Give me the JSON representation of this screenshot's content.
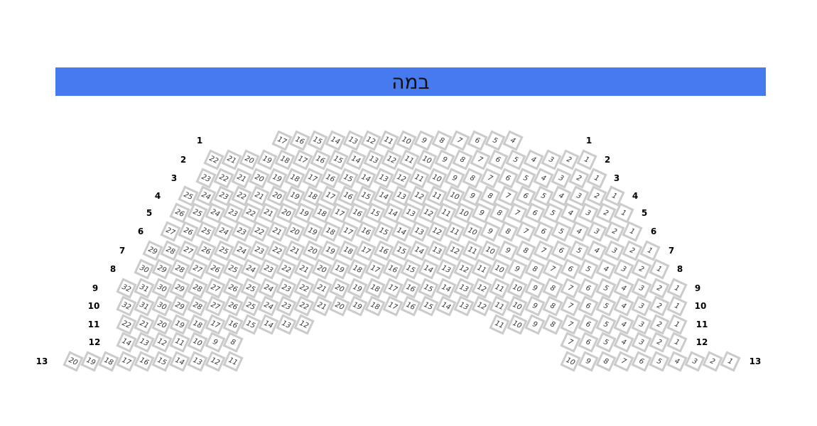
{
  "stage": {
    "label": "במה",
    "color": "#4779ef"
  },
  "seat_border_color": "#cbcbcb",
  "rows": [
    {
      "label": "1",
      "sections": [
        [
          17,
          16,
          15,
          14,
          13,
          12,
          11,
          10,
          9,
          8,
          7,
          6,
          5,
          4
        ]
      ]
    },
    {
      "label": "2",
      "sections": [
        [
          22,
          21,
          20,
          19,
          18,
          17,
          16,
          15,
          14,
          13,
          12,
          11,
          10,
          9,
          8,
          7,
          6,
          5,
          4,
          3,
          2,
          1
        ]
      ]
    },
    {
      "label": "3",
      "sections": [
        [
          23,
          22,
          21,
          20,
          19,
          18,
          17,
          16,
          15,
          14,
          13,
          12,
          11,
          10,
          9,
          8,
          7,
          6,
          5,
          4,
          3,
          2,
          1
        ]
      ]
    },
    {
      "label": "4",
      "sections": [
        [
          25,
          24,
          23,
          22,
          21,
          20,
          19,
          18,
          17,
          16,
          15,
          14,
          13,
          12,
          11,
          10,
          9,
          8,
          7,
          6,
          5,
          4,
          3,
          2,
          1
        ]
      ]
    },
    {
      "label": "5",
      "sections": [
        [
          26,
          25,
          24,
          23,
          22,
          21,
          20,
          19,
          18,
          17,
          16,
          15,
          14,
          13,
          12,
          11,
          10,
          9,
          8,
          7,
          6,
          5,
          4,
          3,
          2,
          1
        ]
      ]
    },
    {
      "label": "6",
      "sections": [
        [
          27,
          26,
          25,
          24,
          23,
          22,
          21,
          20,
          19,
          18,
          17,
          16,
          15,
          14,
          13,
          12,
          11,
          10,
          9,
          8,
          7,
          6,
          5,
          4,
          3,
          2,
          1
        ]
      ]
    },
    {
      "label": "7",
      "sections": [
        [
          29,
          28,
          27,
          26,
          25,
          24,
          23,
          22,
          21,
          20,
          19,
          18,
          17,
          16,
          15,
          14,
          13,
          12,
          11,
          10,
          9,
          8,
          7,
          6,
          5,
          4,
          3,
          2,
          1
        ]
      ]
    },
    {
      "label": "8",
      "sections": [
        [
          30,
          29,
          28,
          27,
          26,
          25,
          24,
          23,
          22,
          21,
          20,
          19,
          18,
          17,
          16,
          15,
          14,
          13,
          12,
          11,
          10,
          9,
          8,
          7,
          6,
          5,
          4,
          3,
          2,
          1
        ]
      ]
    },
    {
      "label": "9",
      "sections": [
        [
          32,
          31,
          30,
          29,
          28,
          27,
          26,
          25,
          24,
          23,
          22,
          21,
          20,
          19,
          18,
          17,
          16,
          15,
          14,
          13,
          12,
          11,
          10,
          9,
          8,
          7,
          6,
          5,
          4,
          3,
          2,
          1
        ]
      ]
    },
    {
      "label": "10",
      "sections": [
        [
          32,
          31,
          30,
          29,
          28,
          27,
          26,
          25,
          24,
          23,
          22,
          21,
          20,
          19,
          18,
          17,
          16,
          15,
          14,
          13,
          12,
          11,
          10,
          9,
          8,
          7,
          6,
          5,
          4,
          3,
          2,
          1
        ]
      ]
    },
    {
      "label": "11",
      "sections": [
        [
          22,
          21,
          20,
          19,
          18,
          17,
          16,
          15,
          14,
          13,
          12
        ],
        [
          11,
          10,
          9,
          8,
          7,
          6,
          5,
          4,
          3,
          2,
          1
        ]
      ]
    },
    {
      "label": "12",
      "sections": [
        [
          14,
          13,
          12,
          11,
          10,
          9,
          8
        ],
        [
          7,
          6,
          5,
          4,
          3,
          2,
          1
        ]
      ]
    },
    {
      "label": "13",
      "sections": [
        [
          20,
          19,
          18,
          17,
          16,
          15,
          14,
          13,
          12,
          11
        ],
        [
          10,
          9,
          8,
          7,
          6,
          5,
          4,
          3,
          2,
          1
        ]
      ]
    }
  ]
}
